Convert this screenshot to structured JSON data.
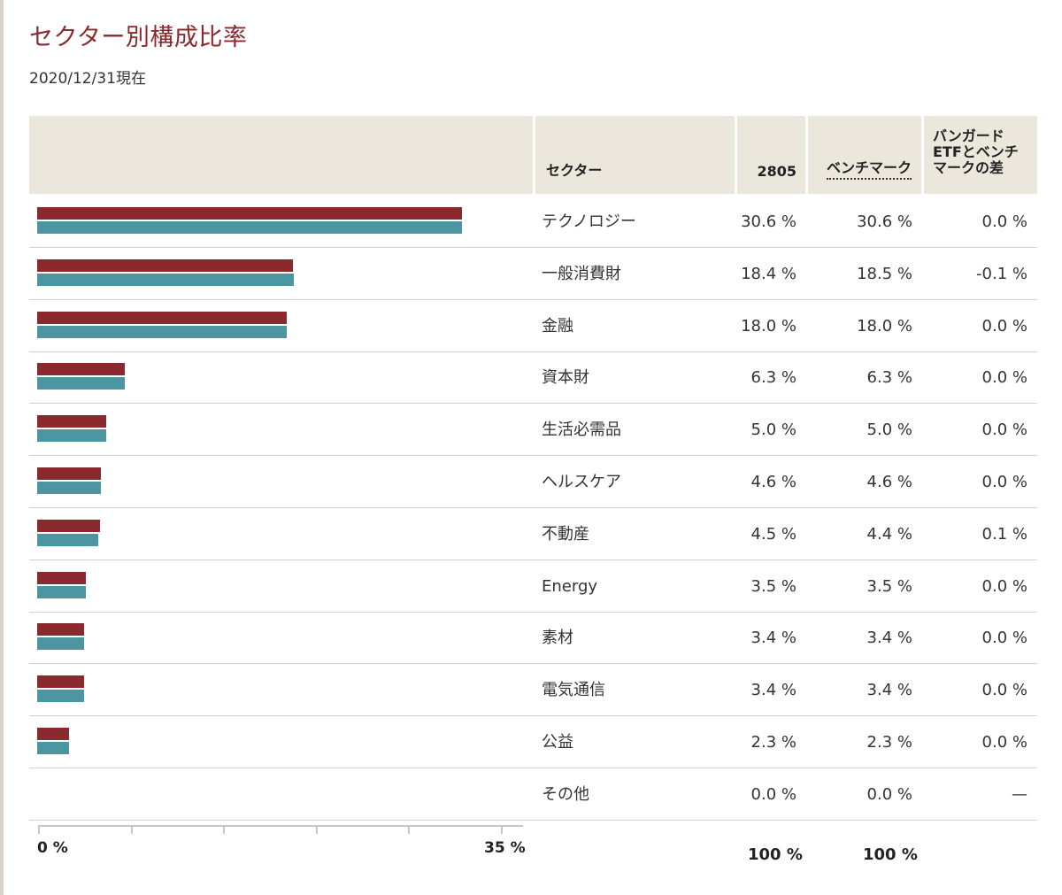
{
  "title": "セクター別構成比率",
  "as_of": "2020/12/31現在",
  "header": {
    "sector": "セクター",
    "fund": "2805",
    "benchmark": "ベンチマーク",
    "diff_lines": [
      "バンガード",
      "ETFとベンチ",
      "マークの差"
    ]
  },
  "colors": {
    "fund": "#8b2a2e",
    "benchmark": "#4c96a2",
    "title": "#8b2a2e",
    "header_bg": "#ebe7dd"
  },
  "chart_data": {
    "type": "bar",
    "categories": [
      "テクノロジー",
      "一般消費財",
      "金融",
      "資本財",
      "生活必需品",
      "ヘルスケア",
      "不動産",
      "Energy",
      "素材",
      "電気通信",
      "公益",
      "その他"
    ],
    "series": [
      {
        "name": "2805",
        "values": [
          30.6,
          18.4,
          18.0,
          6.3,
          5.0,
          4.6,
          4.5,
          3.5,
          3.4,
          3.4,
          2.3,
          0.0
        ]
      },
      {
        "name": "ベンチマーク",
        "values": [
          30.6,
          18.5,
          18.0,
          6.3,
          5.0,
          4.6,
          4.4,
          3.5,
          3.4,
          3.4,
          2.3,
          0.0
        ]
      }
    ],
    "xlim": [
      0,
      35
    ],
    "x_tick_labels": [
      "0 %",
      "35 %"
    ],
    "orientation": "horizontal"
  },
  "rows": [
    {
      "sector": "テクノロジー",
      "fund": "30.6 %",
      "bench": "30.6 %",
      "diff": "0.0 %"
    },
    {
      "sector": "一般消費財",
      "fund": "18.4 %",
      "bench": "18.5 %",
      "diff": "-0.1 %"
    },
    {
      "sector": "金融",
      "fund": "18.0 %",
      "bench": "18.0 %",
      "diff": "0.0 %"
    },
    {
      "sector": "資本財",
      "fund": "6.3 %",
      "bench": "6.3 %",
      "diff": "0.0 %"
    },
    {
      "sector": "生活必需品",
      "fund": "5.0 %",
      "bench": "5.0 %",
      "diff": "0.0 %"
    },
    {
      "sector": "ヘルスケア",
      "fund": "4.6 %",
      "bench": "4.6 %",
      "diff": "0.0 %"
    },
    {
      "sector": "不動産",
      "fund": "4.5 %",
      "bench": "4.4 %",
      "diff": "0.1 %"
    },
    {
      "sector": "Energy",
      "fund": "3.5 %",
      "bench": "3.5 %",
      "diff": "0.0 %"
    },
    {
      "sector": "素材",
      "fund": "3.4 %",
      "bench": "3.4 %",
      "diff": "0.0 %"
    },
    {
      "sector": "電気通信",
      "fund": "3.4 %",
      "bench": "3.4 %",
      "diff": "0.0 %"
    },
    {
      "sector": "公益",
      "fund": "2.3 %",
      "bench": "2.3 %",
      "diff": "0.0 %"
    },
    {
      "sector": "その他",
      "fund": "0.0 %",
      "bench": "0.0 %",
      "diff": "—"
    }
  ],
  "totals": {
    "fund": "100 %",
    "bench": "100 %"
  }
}
